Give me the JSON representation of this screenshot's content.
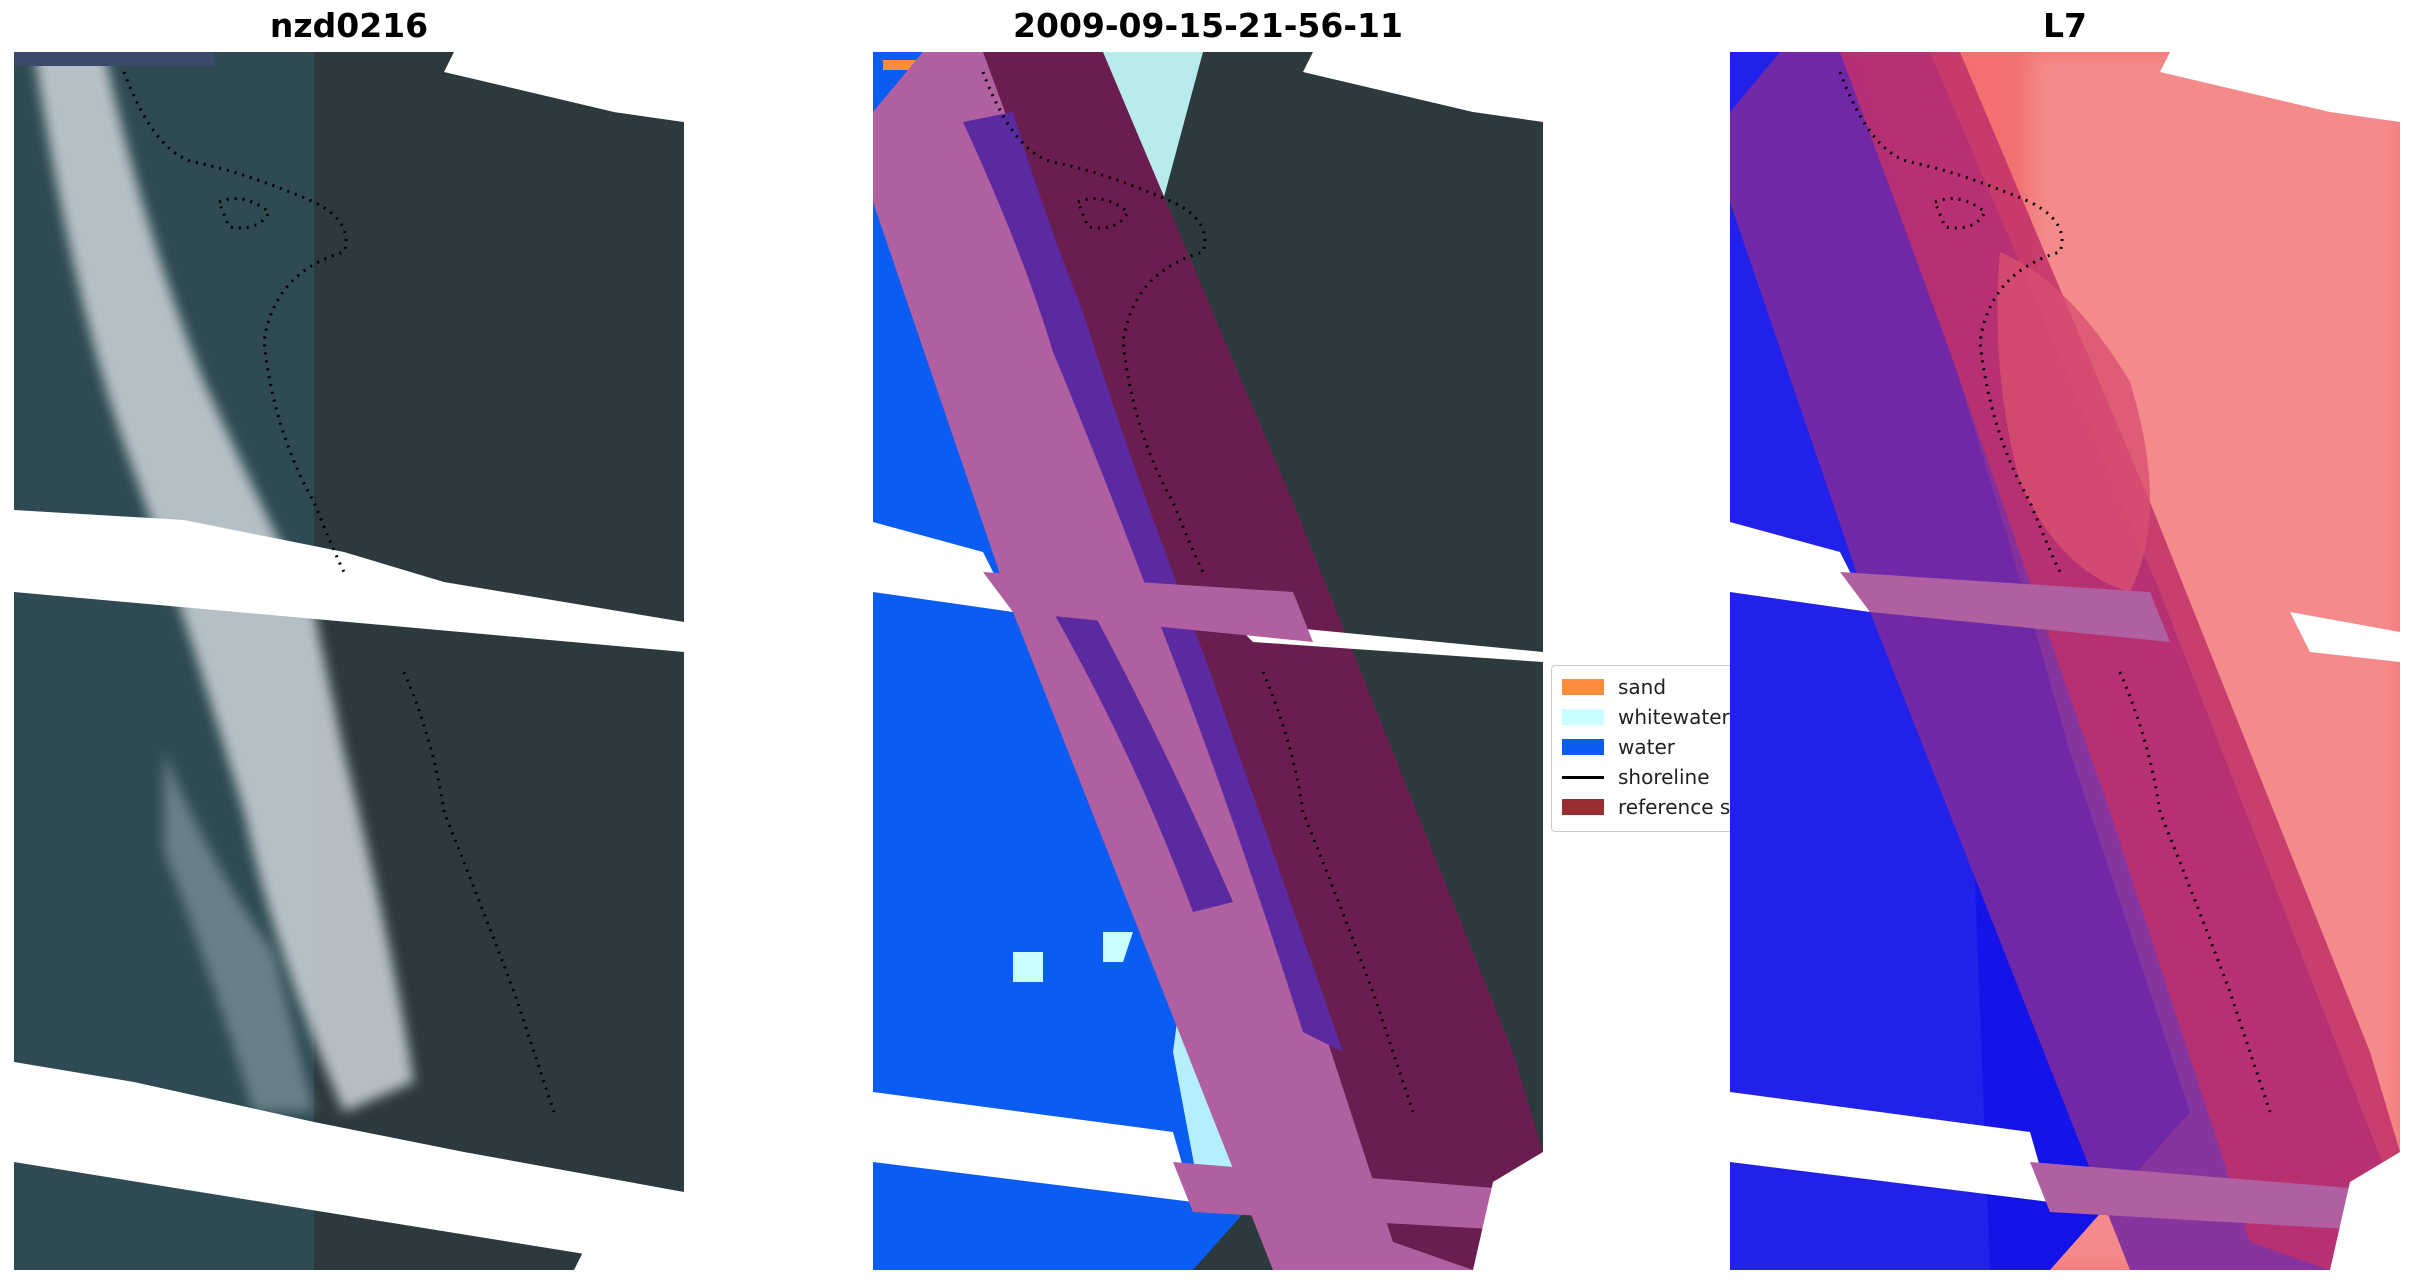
{
  "panels": [
    {
      "title": "nzd0216"
    },
    {
      "title": "2009-09-15-21-56-11"
    },
    {
      "title": "L7"
    }
  ],
  "legend": {
    "items": [
      {
        "label": "sand",
        "color": "#ff8c3a",
        "kind": "patch"
      },
      {
        "label": "whitewater",
        "color": "#c8ffff",
        "kind": "patch"
      },
      {
        "label": "water",
        "color": "#0a5cf2",
        "kind": "patch"
      },
      {
        "label": "shoreline",
        "color": "#000000",
        "kind": "line"
      },
      {
        "label": "reference s",
        "color": "#9b2d31",
        "kind": "patch"
      }
    ]
  },
  "colors": {
    "land": "#2e3c40",
    "white_stripes": "#ffffff",
    "surf": "#cfd6dc",
    "shallow": "#355058",
    "buffer_overlay": "#b060a0",
    "buffer_dark": "#6a1e50",
    "buffer_mid": "#5c2aa0",
    "water_index_blue": "#1010ee",
    "land_index_red": "#f06060",
    "shoreline": "#000000"
  }
}
